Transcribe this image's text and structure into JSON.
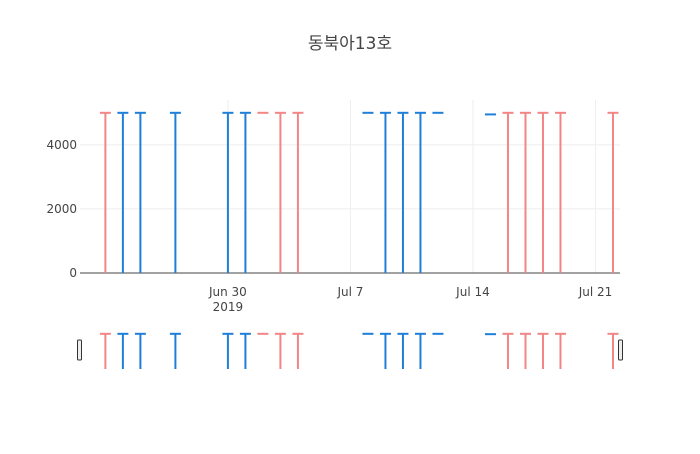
{
  "chart_data": {
    "type": "ohlc",
    "title": "동북아13호",
    "xlabel": "",
    "ylabel": "",
    "x_ticks": [
      {
        "date": "2019-06-30",
        "label": "Jun 30",
        "sublabel": "2019"
      },
      {
        "date": "2019-07-07",
        "label": "Jul 7",
        "sublabel": ""
      },
      {
        "date": "2019-07-14",
        "label": "Jul 14",
        "sublabel": ""
      },
      {
        "date": "2019-07-21",
        "label": "Jul 21",
        "sublabel": ""
      }
    ],
    "y_ticks": [
      0,
      2000,
      4000
    ],
    "ylim": [
      0,
      5400
    ],
    "xlim": [
      "2019-06-22",
      "2019-07-22"
    ],
    "grid": true,
    "increasing_color": "#1f7ed8",
    "decreasing_color": "#f28585",
    "rangeslider": true,
    "candles": [
      {
        "date": "2019-06-23",
        "open": 5000,
        "high": 5000,
        "low": 0,
        "close": 5000,
        "direction": "decreasing"
      },
      {
        "date": "2019-06-24",
        "open": 5000,
        "high": 5000,
        "low": 0,
        "close": 5000,
        "direction": "increasing"
      },
      {
        "date": "2019-06-25",
        "open": 5000,
        "high": 5000,
        "low": 0,
        "close": 5000,
        "direction": "increasing"
      },
      {
        "date": "2019-06-27",
        "open": 5000,
        "high": 5000,
        "low": 0,
        "close": 5000,
        "direction": "increasing"
      },
      {
        "date": "2019-06-30",
        "open": 5000,
        "high": 5000,
        "low": 0,
        "close": 5000,
        "direction": "increasing"
      },
      {
        "date": "2019-07-01",
        "open": 5000,
        "high": 5000,
        "low": 0,
        "close": 5000,
        "direction": "increasing"
      },
      {
        "date": "2019-07-02",
        "open": 5000,
        "high": 5000,
        "low": 5000,
        "close": 5000,
        "direction": "decreasing"
      },
      {
        "date": "2019-07-03",
        "open": 5000,
        "high": 5000,
        "low": 0,
        "close": 5000,
        "direction": "decreasing"
      },
      {
        "date": "2019-07-04",
        "open": 5000,
        "high": 5000,
        "low": 0,
        "close": 5000,
        "direction": "decreasing"
      },
      {
        "date": "2019-07-08",
        "open": 5000,
        "high": 5000,
        "low": 5000,
        "close": 5000,
        "direction": "increasing"
      },
      {
        "date": "2019-07-09",
        "open": 5000,
        "high": 5000,
        "low": 0,
        "close": 5000,
        "direction": "increasing"
      },
      {
        "date": "2019-07-10",
        "open": 5000,
        "high": 5000,
        "low": 0,
        "close": 5000,
        "direction": "increasing"
      },
      {
        "date": "2019-07-11",
        "open": 5000,
        "high": 5000,
        "low": 0,
        "close": 5000,
        "direction": "increasing"
      },
      {
        "date": "2019-07-12",
        "open": 5000,
        "high": 5000,
        "low": 5000,
        "close": 5000,
        "direction": "increasing"
      },
      {
        "date": "2019-07-15",
        "open": 4950,
        "high": 4950,
        "low": 4950,
        "close": 4950,
        "direction": "increasing"
      },
      {
        "date": "2019-07-16",
        "open": 5000,
        "high": 5000,
        "low": 0,
        "close": 5000,
        "direction": "decreasing"
      },
      {
        "date": "2019-07-17",
        "open": 5000,
        "high": 5000,
        "low": 0,
        "close": 5000,
        "direction": "decreasing"
      },
      {
        "date": "2019-07-18",
        "open": 5000,
        "high": 5000,
        "low": 0,
        "close": 5000,
        "direction": "decreasing"
      },
      {
        "date": "2019-07-19",
        "open": 5000,
        "high": 5000,
        "low": 0,
        "close": 5000,
        "direction": "decreasing"
      },
      {
        "date": "2019-07-22",
        "open": 5000,
        "high": 5000,
        "low": 0,
        "close": 5000,
        "direction": "decreasing"
      }
    ]
  }
}
